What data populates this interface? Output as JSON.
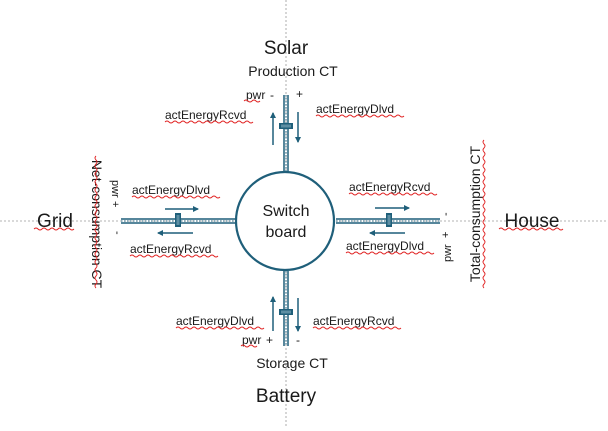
{
  "colors": {
    "line": "#1f5f7a",
    "guide": "#9a9a9a",
    "squiggle": "#e02020",
    "text": "#1a1a1a"
  },
  "center": {
    "line1": "Switch",
    "line2": "board"
  },
  "nodes": {
    "solar": "Solar",
    "grid": "Grid",
    "house": "House",
    "battery": "Battery"
  },
  "ct": {
    "production": "Production CT",
    "net": "Net-consumption CT",
    "total": "Total-consumption CT",
    "storage": "Storage CT"
  },
  "labels": {
    "top_left": "actEnergyRcvd",
    "top_right": "actEnergyDlvd",
    "left_upper": "actEnergyDlvd",
    "left_lower": "actEnergyRcvd",
    "right_upper": "actEnergyRcvd",
    "right_lower": "actEnergyDlvd",
    "bottom_left": "actEnergyDlvd",
    "bottom_right": "actEnergyRcvd"
  },
  "polarity": {
    "top_pwr": "pwr",
    "top_minus": "-",
    "top_plus": "+",
    "left_pwr": "pwr",
    "left_plus": "+",
    "left_minus": "-",
    "right_minus": "-",
    "right_pwr": "pwr",
    "right_plus": "+",
    "bottom_pwr": "pwr",
    "bottom_plus": "+",
    "bottom_minus": "-"
  }
}
